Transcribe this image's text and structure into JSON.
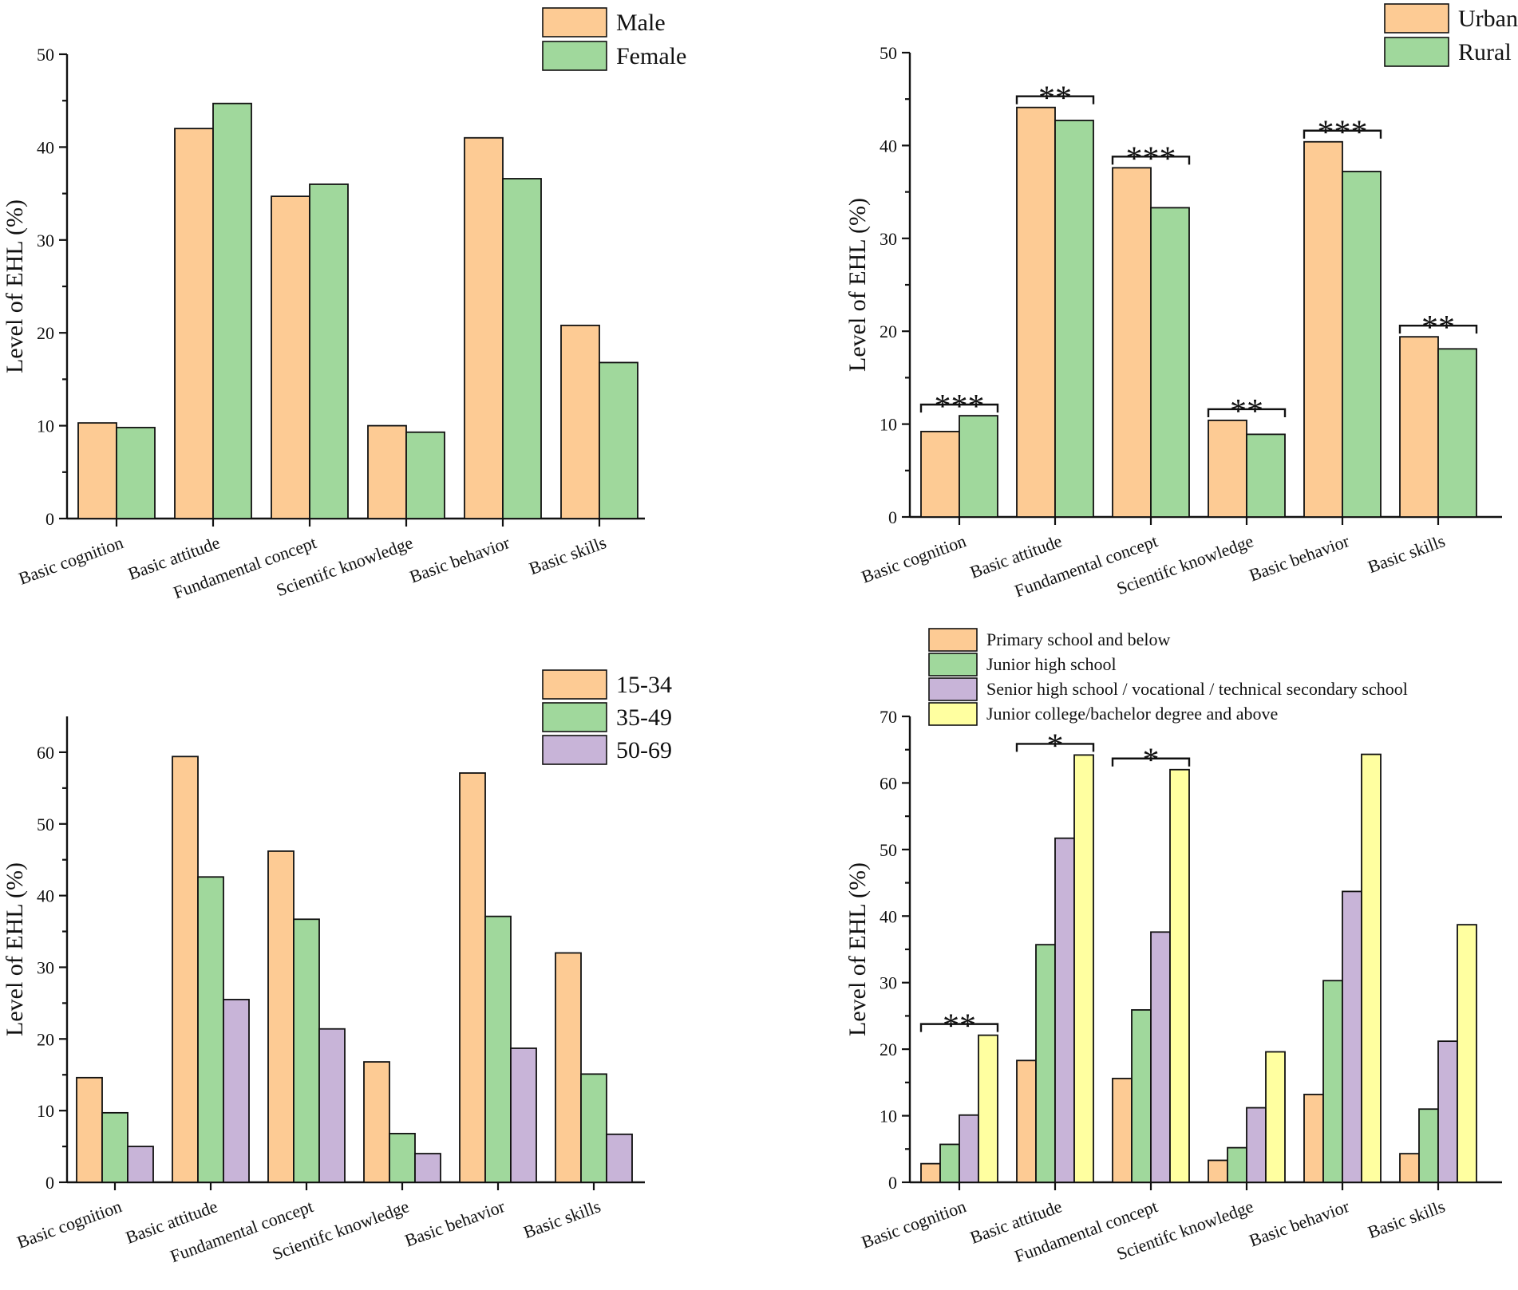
{
  "colors": {
    "orange": "#FDCB94",
    "green": "#A0D89C",
    "purple": "#C8B4D8",
    "yellow": "#FFFFA0"
  },
  "chart_data": [
    {
      "type": "bar",
      "panel": "top-left",
      "ylabel": "Level of EHL (%)",
      "ylim": [
        0,
        50
      ],
      "yticks": [
        0,
        10,
        20,
        30,
        40,
        50
      ],
      "categories": [
        "Basic cognition",
        "Basic attitude",
        "Fundamental concept",
        "Scientifc knowledge",
        "Basic behavior",
        "Basic skills"
      ],
      "series": [
        {
          "name": "Male",
          "color": "#FDCB94",
          "values": [
            10.3,
            42.0,
            34.7,
            10.0,
            41.0,
            20.8
          ]
        },
        {
          "name": "Female",
          "color": "#A0D89C",
          "values": [
            9.8,
            44.7,
            36.0,
            9.3,
            36.6,
            16.8
          ]
        }
      ],
      "legend_position": "top-right",
      "legend_font": "large",
      "significance": []
    },
    {
      "type": "bar",
      "panel": "top-right",
      "ylabel": "Level of EHL (%)",
      "ylim": [
        0,
        50
      ],
      "yticks": [
        0,
        10,
        20,
        30,
        40,
        50
      ],
      "categories": [
        "Basic cognition",
        "Basic attitude",
        "Fundamental concept",
        "Scientifc knowledge",
        "Basic behavior",
        "Basic skills"
      ],
      "series": [
        {
          "name": "Urban",
          "color": "#FDCB94",
          "values": [
            9.2,
            44.1,
            37.6,
            10.4,
            40.4,
            19.4
          ]
        },
        {
          "name": "Rural",
          "color": "#A0D89C",
          "values": [
            10.9,
            42.7,
            33.3,
            8.9,
            37.2,
            18.1
          ]
        }
      ],
      "legend_position": "top-right",
      "legend_font": "large",
      "significance": [
        {
          "category": 0,
          "label": "***"
        },
        {
          "category": 1,
          "label": "**"
        },
        {
          "category": 2,
          "label": "***"
        },
        {
          "category": 3,
          "label": "**"
        },
        {
          "category": 4,
          "label": "***"
        },
        {
          "category": 5,
          "label": "**"
        }
      ]
    },
    {
      "type": "bar",
      "panel": "bottom-left",
      "ylabel": "Level of EHL (%)",
      "ylim": [
        0,
        65
      ],
      "yticks": [
        0,
        10,
        20,
        30,
        40,
        50,
        60
      ],
      "categories": [
        "Basic cognition",
        "Basic attitude",
        "Fundamental concept",
        "Scientifc knowledge",
        "Basic behavior",
        "Basic skills"
      ],
      "series": [
        {
          "name": "15-34",
          "color": "#FDCB94",
          "values": [
            14.6,
            59.4,
            46.2,
            16.8,
            57.1,
            32.0
          ]
        },
        {
          "name": "35-49",
          "color": "#A0D89C",
          "values": [
            9.7,
            42.6,
            36.7,
            6.8,
            37.1,
            15.1
          ]
        },
        {
          "name": "50-69",
          "color": "#C8B4D8",
          "values": [
            5.0,
            25.5,
            21.4,
            4.0,
            18.7,
            6.7
          ]
        }
      ],
      "legend_position": "top-right",
      "legend_font": "large",
      "significance": []
    },
    {
      "type": "bar",
      "panel": "bottom-right",
      "ylabel": "Level of EHL (%)",
      "ylim": [
        0,
        70
      ],
      "yticks": [
        0,
        10,
        20,
        30,
        40,
        50,
        60,
        70
      ],
      "categories": [
        "Basic cognition",
        "Basic attitude",
        "Fundamental concept",
        "Scientifc knowledge",
        "Basic behavior",
        "Basic skills"
      ],
      "series": [
        {
          "name": "Primary school and below",
          "color": "#FDCB94",
          "values": [
            2.8,
            18.3,
            15.6,
            3.3,
            13.2,
            4.3
          ]
        },
        {
          "name": "Junior high school",
          "color": "#A0D89C",
          "values": [
            5.7,
            35.7,
            25.9,
            5.2,
            30.3,
            11.0
          ]
        },
        {
          "name": "Senior high school / vocational / technical secondary school",
          "color": "#C8B4D8",
          "values": [
            10.1,
            51.7,
            37.6,
            11.2,
            43.7,
            21.2
          ]
        },
        {
          "name": "Junior college/bachelor degree and above",
          "color": "#FFFFA0",
          "values": [
            22.1,
            64.2,
            62.0,
            19.6,
            64.3,
            38.7
          ]
        }
      ],
      "legend_position": "top-left",
      "legend_font": "small",
      "significance": [
        {
          "category": 0,
          "label": "**"
        },
        {
          "category": 1,
          "label": "*"
        },
        {
          "category": 2,
          "label": "*"
        }
      ]
    }
  ]
}
